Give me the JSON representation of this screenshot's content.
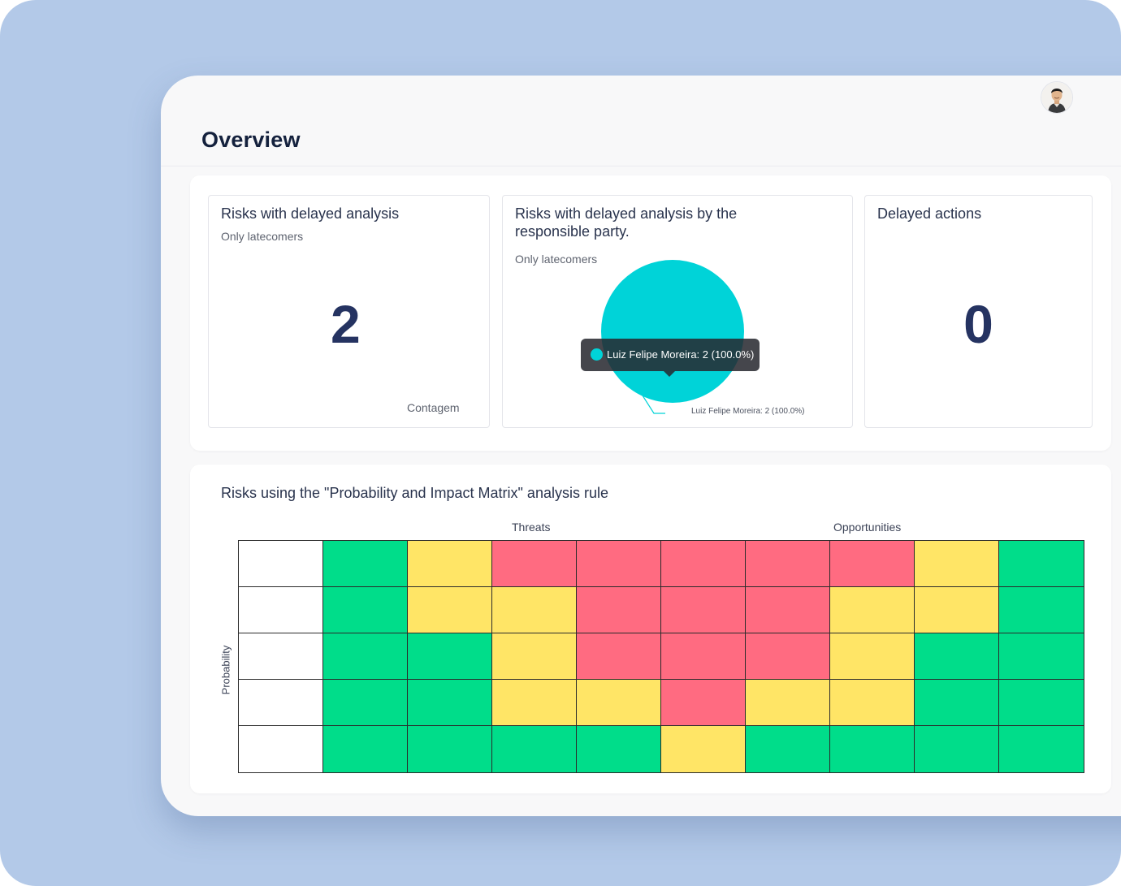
{
  "page": {
    "title": "Overview"
  },
  "header": {
    "avatar_alt": "user-avatar"
  },
  "cards": {
    "delayed_analysis": {
      "title": "Risks with delayed analysis",
      "subtitle": "Only latecomers",
      "value": "2",
      "footer": "Contagem"
    },
    "by_responsible": {
      "title": "Risks with delayed analysis by the responsible party.",
      "subtitle": "Only latecomers",
      "tooltip": "Luiz Felipe Moreira: 2 (100.0%)",
      "slice_label": "Luiz Felipe Moreira: 2 (100.0%)"
    },
    "delayed_actions": {
      "title": "Delayed actions",
      "value": "0"
    }
  },
  "chart_data": {
    "type": "pie",
    "labels": [
      "Luiz Felipe Moreira"
    ],
    "values": [
      2
    ],
    "percentages": [
      100.0
    ],
    "colors": [
      "#00d3d8"
    ]
  },
  "matrix": {
    "title": "Risks using the \"Probability and Impact Matrix\" analysis rule",
    "threats_label": "Threats",
    "opportunities_label": "Opportunities",
    "probability_label": "Probability",
    "colors": {
      "W": "#ffffff",
      "G": "#00dd8a",
      "Y": "#ffe566",
      "R": "#ff6b81"
    },
    "rows": [
      [
        "W",
        "G",
        "Y",
        "R",
        "R",
        "R",
        "R",
        "R",
        "Y",
        "G"
      ],
      [
        "W",
        "G",
        "Y",
        "Y",
        "R",
        "R",
        "R",
        "Y",
        "Y",
        "G"
      ],
      [
        "W",
        "G",
        "G",
        "Y",
        "R",
        "R",
        "R",
        "Y",
        "G",
        "G"
      ],
      [
        "W",
        "G",
        "G",
        "Y",
        "Y",
        "R",
        "Y",
        "Y",
        "G",
        "G"
      ],
      [
        "W",
        "G",
        "G",
        "G",
        "G",
        "Y",
        "G",
        "G",
        "G",
        "G"
      ]
    ]
  }
}
